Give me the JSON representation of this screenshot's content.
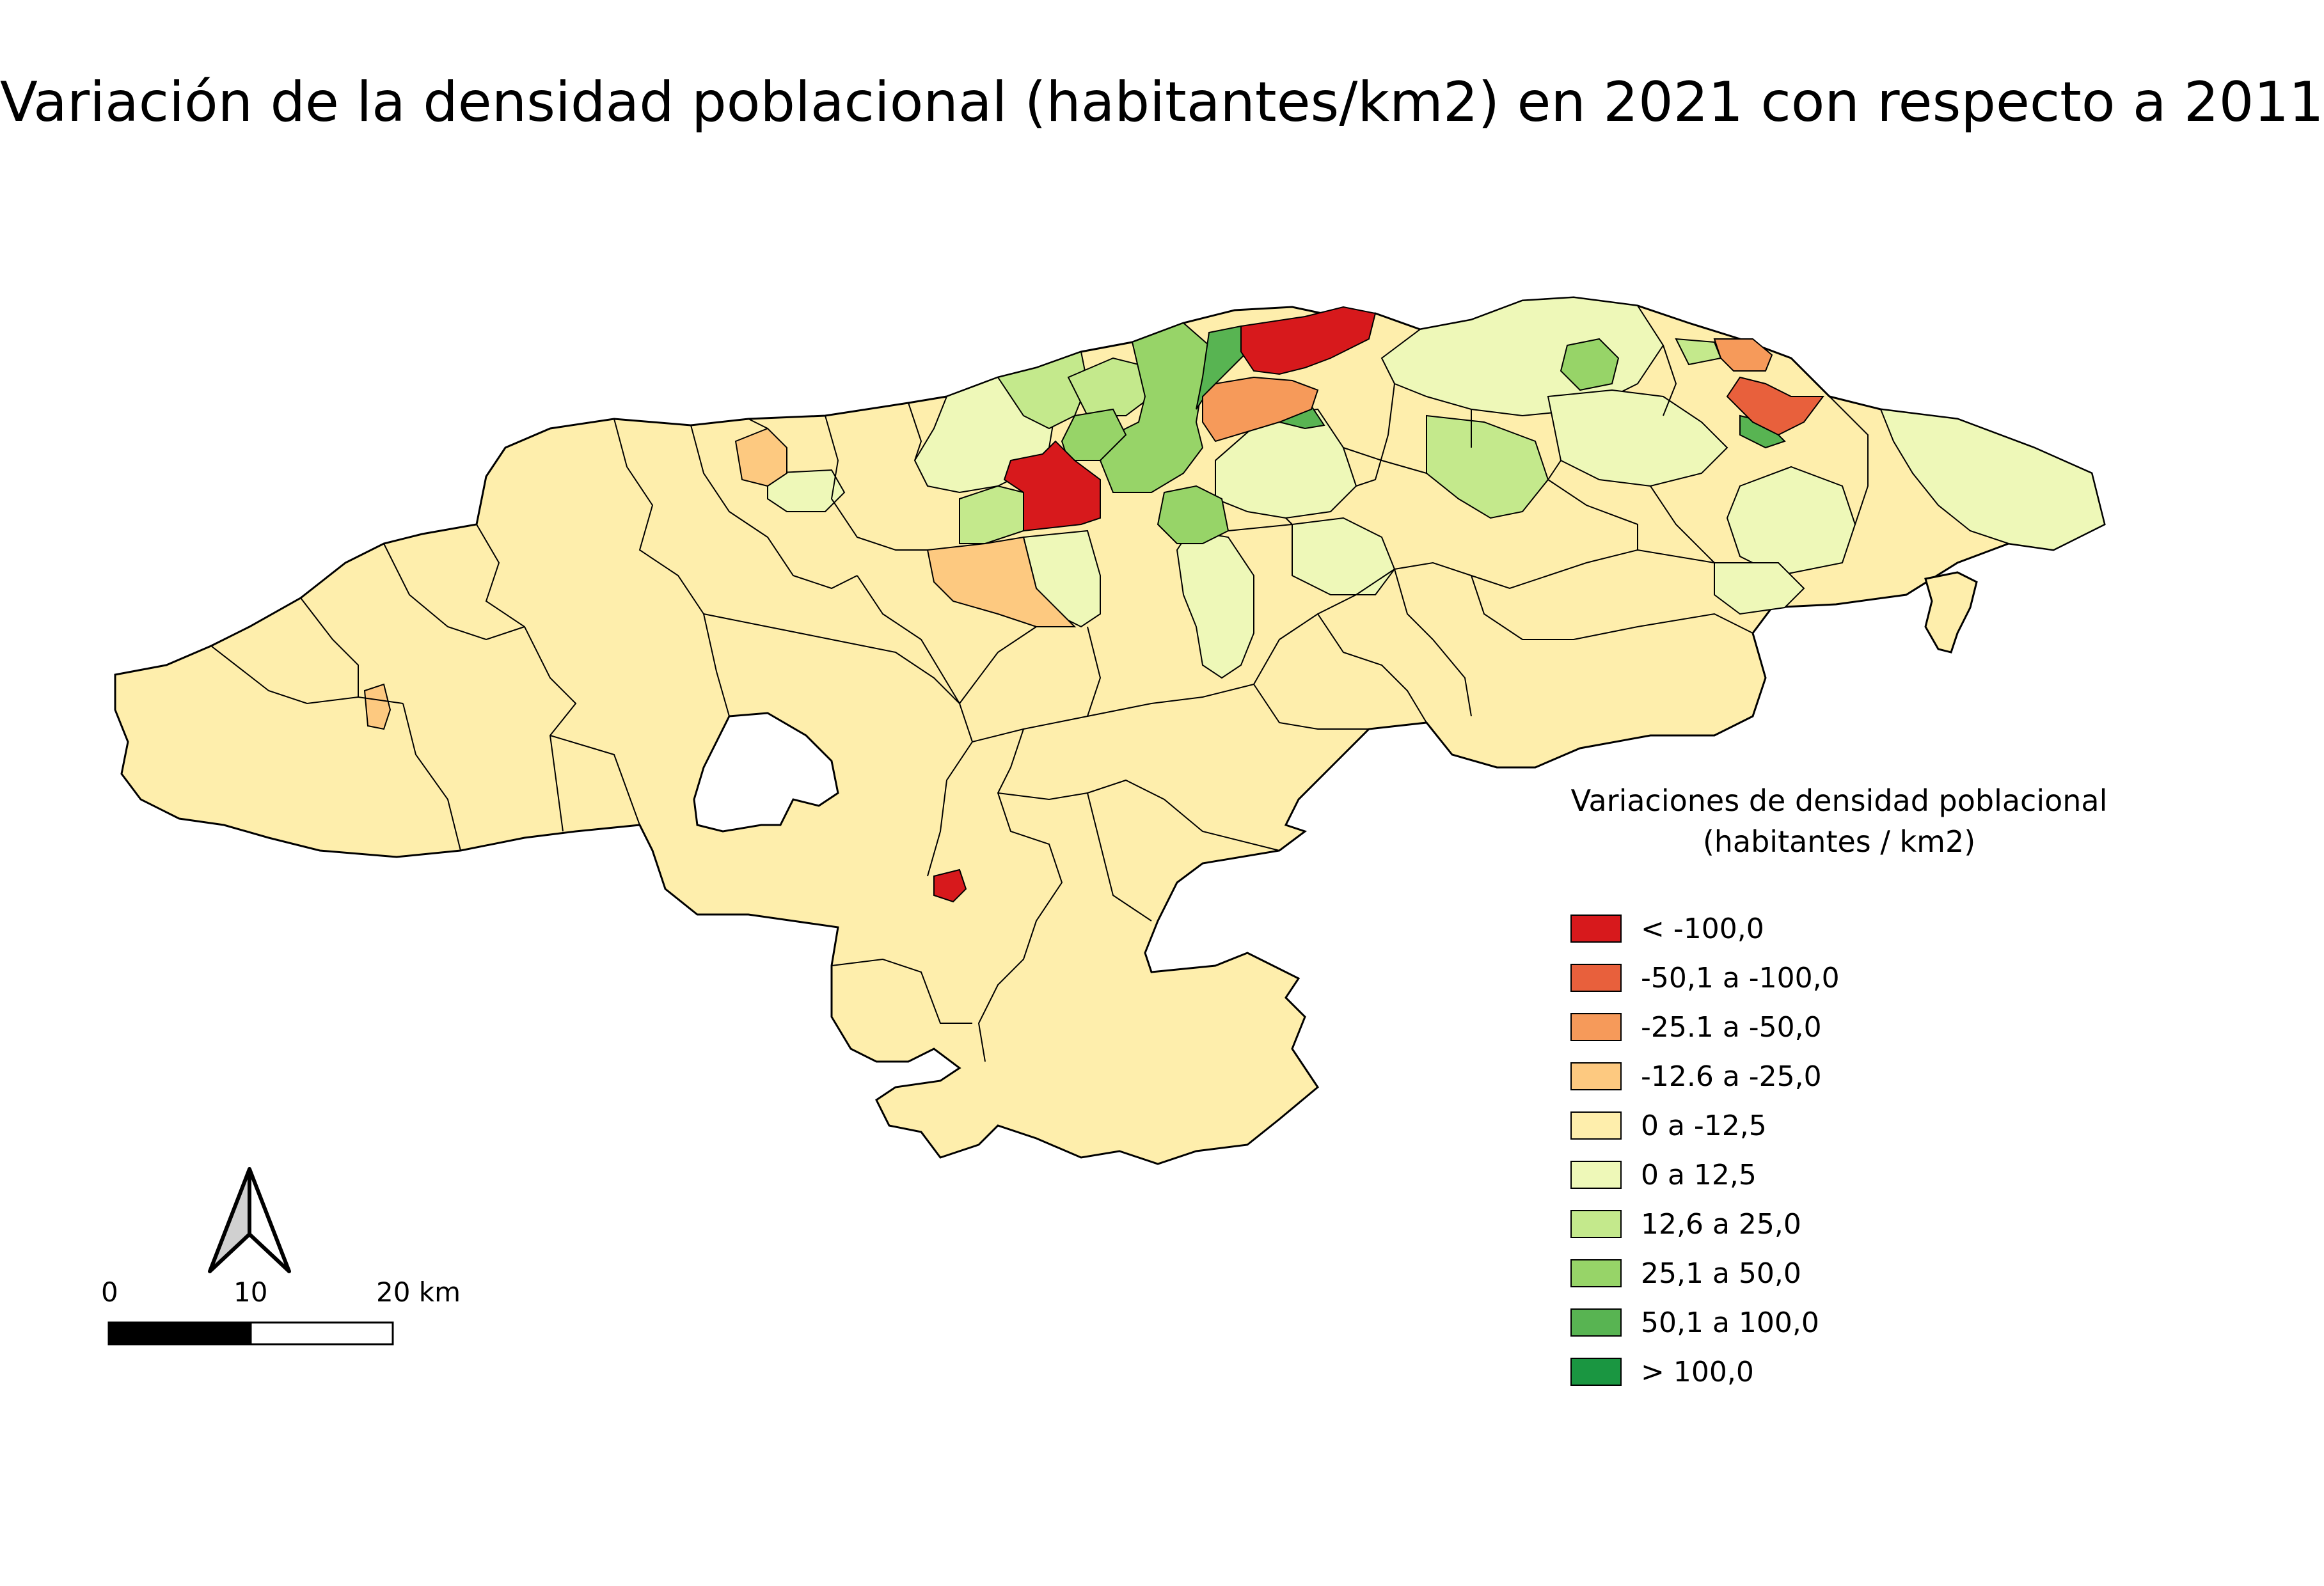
{
  "title": "Variación de la densidad poblacional (habitantes/km2) en 2021 con respecto a 2011",
  "legend": {
    "title_line1": "Variaciones de densidad poblacional",
    "title_line2": "(habitantes / km2)",
    "items": [
      {
        "label": "< -100,0",
        "color": "#d7191c"
      },
      {
        "label": "-50,1 a -100,0",
        "color": "#e8603c"
      },
      {
        "label": "-25.1 a -50,0",
        "color": "#f69a5a"
      },
      {
        "label": "-12.6 a -25,0",
        "color": "#fdc980"
      },
      {
        "label": "0 a -12,5",
        "color": "#feeeac"
      },
      {
        "label": "0 a 12,5",
        "color": "#eef8b8"
      },
      {
        "label": "12,6 a 25,0",
        "color": "#c4e98c"
      },
      {
        "label": "25,1 a 50,0",
        "color": "#97d468"
      },
      {
        "label": "50,1 a 100,0",
        "color": "#58b452"
      },
      {
        "label": "> 100,0",
        "color": "#1a9641"
      }
    ]
  },
  "scale_bar": {
    "label_0": "0",
    "label_10": "10",
    "label_20": "20 km"
  },
  "north_arrow": {
    "icon": "north-arrow-icon"
  }
}
